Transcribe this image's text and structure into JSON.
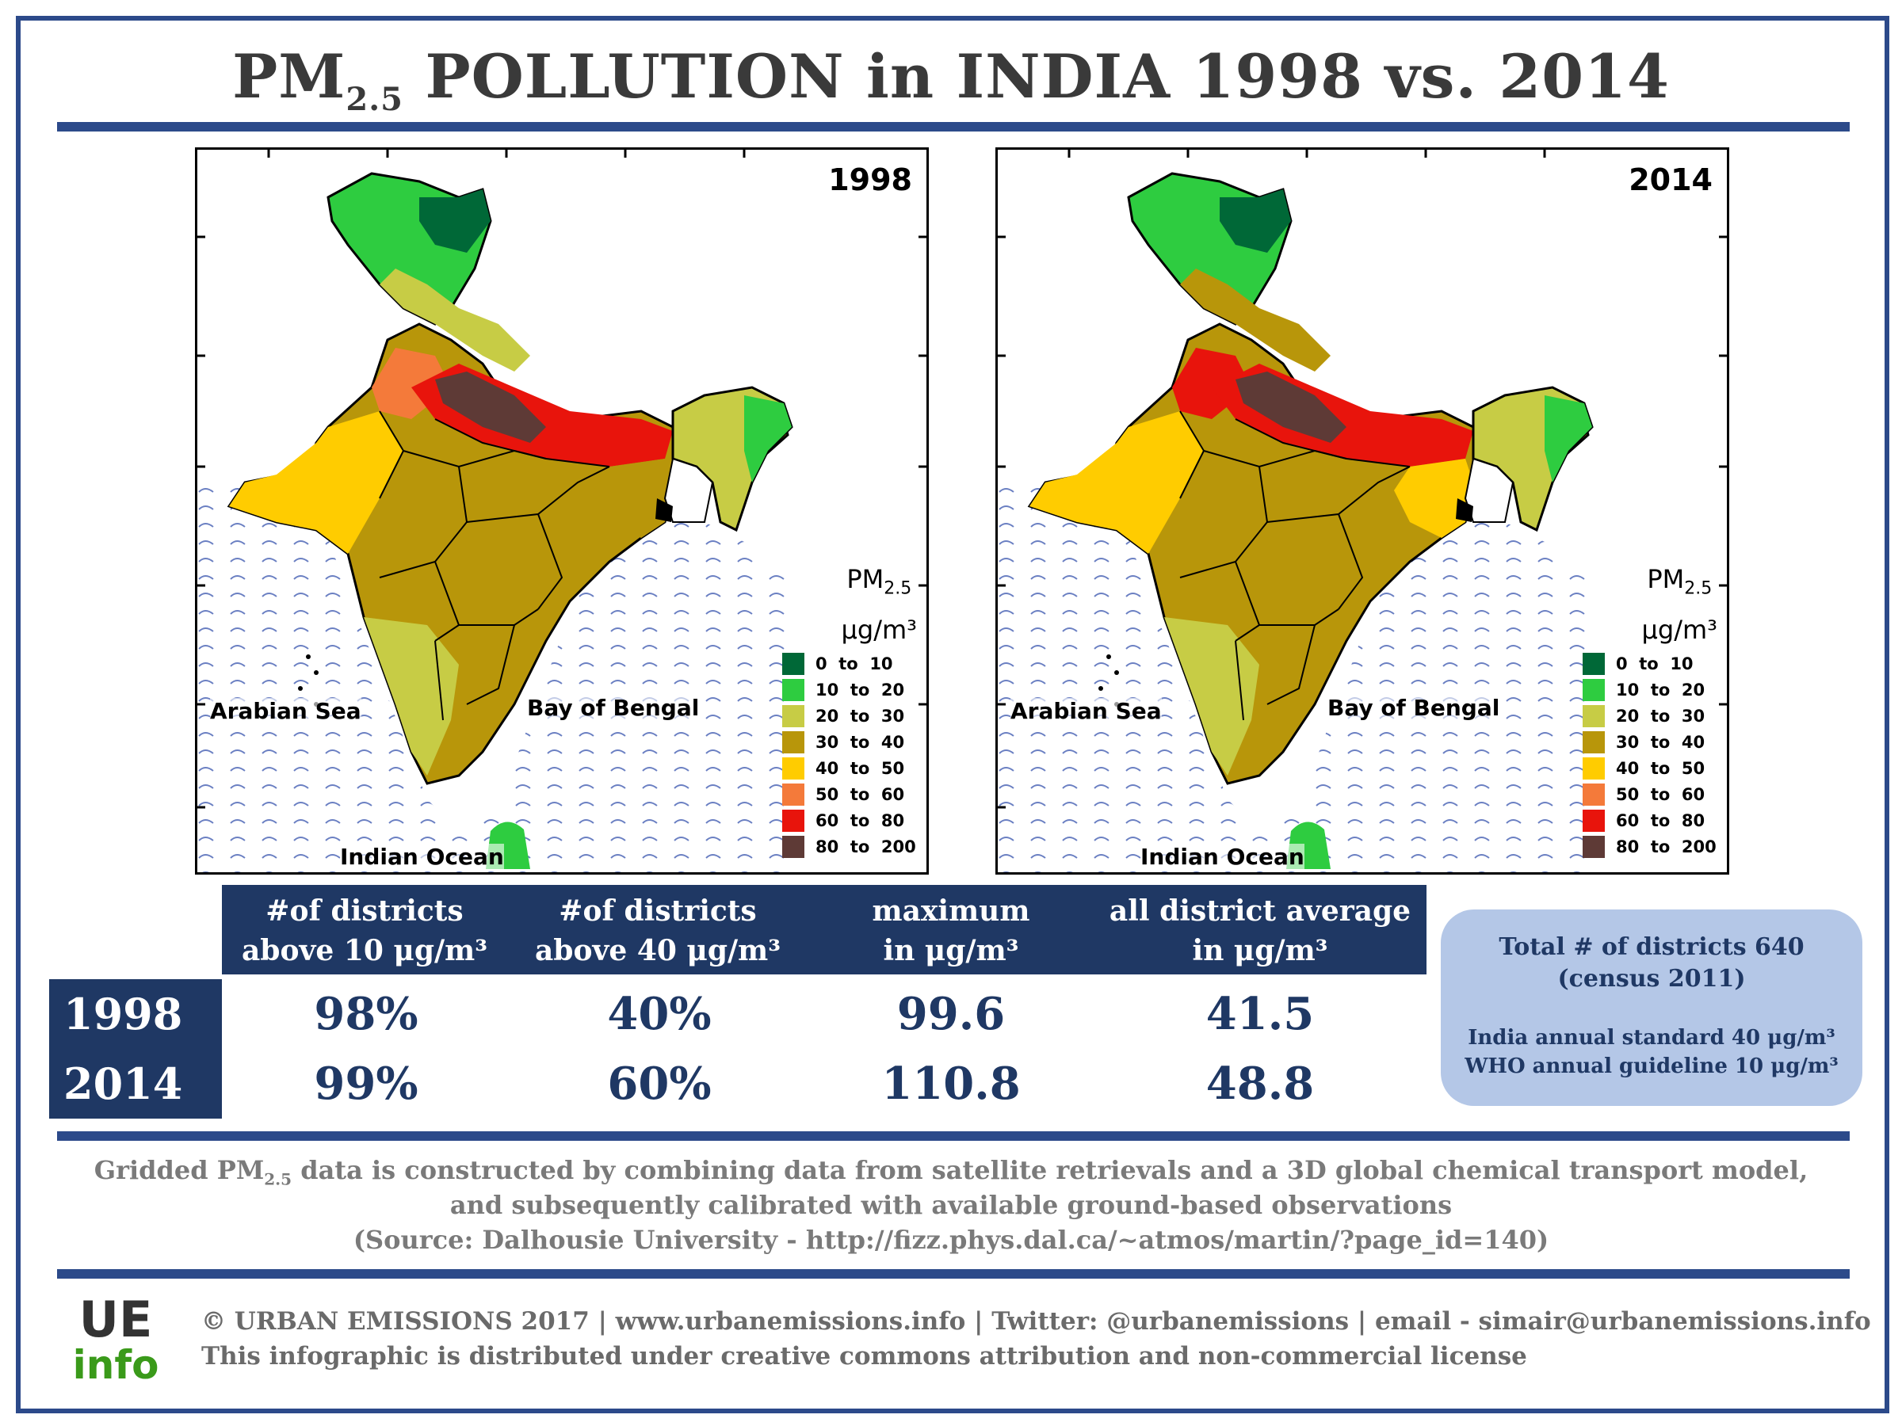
{
  "title": {
    "pre": "PM",
    "sub": "2.5",
    "post": " POLLUTION in INDIA 1998 vs. 2014"
  },
  "maps": [
    {
      "year": "1998"
    },
    {
      "year": "2014"
    }
  ],
  "map_labels": {
    "arabian_sea": "Arabian Sea",
    "bay_of_bengal": "Bay of Bengal",
    "indian_ocean": "Indian Ocean",
    "unit_pm": "PM",
    "unit_sub": "2.5",
    "unit": "μg/m³"
  },
  "legend": {
    "items": [
      {
        "label": "0  to  10",
        "color": "#006837"
      },
      {
        "label": "10  to  20",
        "color": "#2ecc40"
      },
      {
        "label": "20  to  30",
        "color": "#c7cc45"
      },
      {
        "label": "30  to  40",
        "color": "#b8960a"
      },
      {
        "label": "40  to  50",
        "color": "#ffcc00"
      },
      {
        "label": "50  to  60",
        "color": "#f47a3a"
      },
      {
        "label": "60  to  80",
        "color": "#e8140c"
      },
      {
        "label": "80  to  200",
        "color": "#5e3a36"
      }
    ]
  },
  "table": {
    "headers": [
      {
        "line1": "#of districts",
        "line2": "above 10 μg/m³"
      },
      {
        "line1": "#of districts",
        "line2": "above 40 μg/m³"
      },
      {
        "line1": "maximum",
        "line2": "in μg/m³"
      },
      {
        "line1": "all district average",
        "line2": "in μg/m³"
      }
    ],
    "rows": [
      {
        "year": "1998",
        "values": [
          "98%",
          "40%",
          "99.6",
          "41.5"
        ]
      },
      {
        "year": "2014",
        "values": [
          "99%",
          "60%",
          "110.8",
          "48.8"
        ]
      }
    ]
  },
  "info_box": {
    "line1": "Total # of districts 640",
    "line2": "(census 2011)",
    "line3": "India annual standard 40 μg/m³",
    "line4": "WHO annual guideline 10 μg/m³"
  },
  "note": {
    "line1_pre": "Gridded PM",
    "line1_sub": "2.5",
    "line1_post": " data is constructed by combining data from satellite retrievals and a 3D global chemical transport model,",
    "line2": "and subsequently calibrated with available ground-based observations",
    "line3": "(Source:  Dalhousie University - http://fizz.phys.dal.ca/~atmos/martin/?page_id=140)"
  },
  "logo": {
    "top": "UE",
    "bottom": "info"
  },
  "footer": {
    "line1": "© URBAN EMISSIONS 2017 | www.urbanemissions.info | Twitter: @urbanemissions | email - simair@urbanemissions.info",
    "line2": "This infographic is distributed under creative commons attribution and non-commercial license"
  },
  "colors": {
    "frame": "#2c4a8a",
    "table_dark": "#1f3864",
    "info_box": "#b4c7e7",
    "sea_wave": "#6a7fc2"
  }
}
